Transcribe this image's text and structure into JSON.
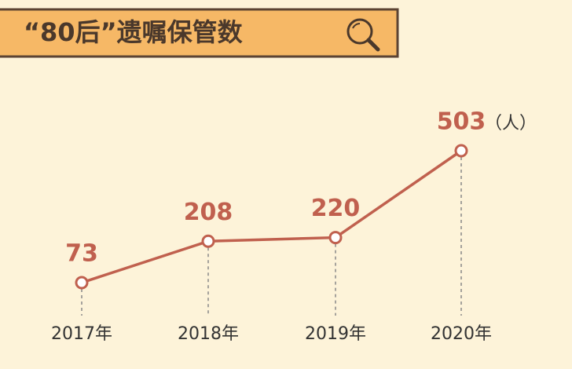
{
  "chart_data": {
    "type": "line",
    "title": "“80后”遗嘱保管数",
    "unit": "（人）",
    "categories": [
      "2017年",
      "2018年",
      "2019年",
      "2020年"
    ],
    "values": [
      73,
      208,
      220,
      503
    ],
    "color": "#c0604e"
  }
}
